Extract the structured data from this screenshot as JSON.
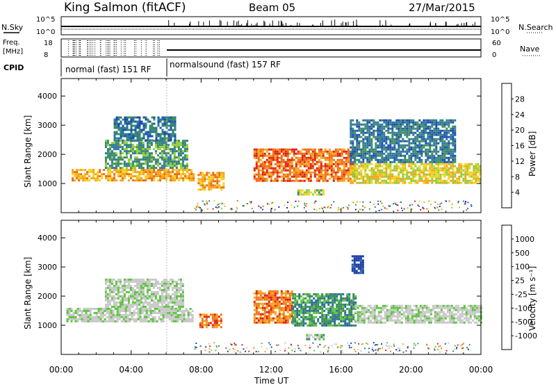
{
  "header": {
    "station": "King Salmon (fitACF)",
    "beam": "Beam 05",
    "date": "27/Mar/2015"
  },
  "summary_panels": {
    "nsky_label": "N.Sky",
    "nsky_ticks": [
      "10^5",
      "10^0"
    ],
    "nsearch_label": "N.Search",
    "nsearch_ticks": [
      "10^5",
      "10^0"
    ],
    "freq_label": "Freq.",
    "freq_unit": "[MHz]",
    "freq_ticks": [
      "18",
      "8"
    ],
    "nave_label": "Nave",
    "nave_ticks": [
      "60",
      "0"
    ],
    "cpid_label": "CPID",
    "cpid_segments": [
      {
        "label": "normal (fast) 151 RF",
        "start_hour": 0,
        "end_hour": 6
      },
      {
        "label": "normalsound (fast) 157 RF",
        "start_hour": 6,
        "end_hour": 24
      }
    ]
  },
  "chart_data": [
    {
      "type": "heatmap",
      "name": "power",
      "ylabel": "Slant Range [km]",
      "ytick_values": [
        1000,
        2000,
        3000,
        4000
      ],
      "ylim": [
        0,
        4600
      ],
      "xlim": [
        0,
        24
      ],
      "colorbar": {
        "label": "Power [dB]",
        "ticks": [
          "28",
          "24",
          "20",
          "16",
          "12",
          "8",
          "4"
        ],
        "colors": [
          "#0b1ee6",
          "#1c4eb4",
          "#2f7a9a",
          "#3f8f5d",
          "#8fcf3a",
          "#f2d21f",
          "#f5a41a",
          "#f06a12",
          "#e02010"
        ]
      },
      "regions": [
        {
          "x0": 0.6,
          "x1": 7.6,
          "y0": 1100,
          "y1": 1500,
          "level": 6
        },
        {
          "x0": 2.5,
          "x1": 7.2,
          "y0": 1500,
          "y1": 2500,
          "level": 3
        },
        {
          "x0": 3.0,
          "x1": 6.5,
          "y0": 2500,
          "y1": 3300,
          "level": 2
        },
        {
          "x0": 7.8,
          "x1": 9.3,
          "y0": 800,
          "y1": 1400,
          "level": 6
        },
        {
          "x0": 11.0,
          "x1": 16.8,
          "y0": 1100,
          "y1": 2200,
          "level": 7
        },
        {
          "x0": 13.5,
          "x1": 15.0,
          "y0": 600,
          "y1": 800,
          "level": 4
        },
        {
          "x0": 16.5,
          "x1": 24.0,
          "y0": 1000,
          "y1": 1700,
          "level": 5
        },
        {
          "x0": 16.5,
          "x1": 22.5,
          "y0": 1700,
          "y1": 3200,
          "level": 2
        }
      ]
    },
    {
      "type": "heatmap",
      "name": "velocity",
      "ylabel": "Slant Range [km]",
      "ytick_values": [
        1000,
        2000,
        3000,
        4000
      ],
      "ylim": [
        0,
        4600
      ],
      "xlim": [
        0,
        24
      ],
      "colorbar": {
        "label": "Velocity [m s⁻¹]",
        "ticks": [
          "1000",
          "500",
          "100",
          "25",
          "-25",
          "-100",
          "-500",
          "-1000"
        ],
        "colors": [
          "#1e3ca8",
          "#2a6aa0",
          "#3c8c5a",
          "#5cc43c",
          "#c8c8c8",
          "#c8c8c8",
          "#f5a41a",
          "#f07814",
          "#e02010"
        ]
      },
      "regions": [
        {
          "x0": 0.3,
          "x1": 7.5,
          "y0": 1100,
          "y1": 1600,
          "level": 4
        },
        {
          "x0": 2.5,
          "x1": 7.0,
          "y0": 1600,
          "y1": 2600,
          "level": 4
        },
        {
          "x0": 7.9,
          "x1": 9.2,
          "y0": 900,
          "y1": 1400,
          "level": 7
        },
        {
          "x0": 11.0,
          "x1": 13.2,
          "y0": 1100,
          "y1": 2200,
          "level": 7
        },
        {
          "x0": 13.2,
          "x1": 16.8,
          "y0": 1000,
          "y1": 2100,
          "level": 2
        },
        {
          "x0": 14.0,
          "x1": 15.0,
          "y0": 500,
          "y1": 700,
          "level": 3
        },
        {
          "x0": 16.6,
          "x1": 17.2,
          "y0": 2800,
          "y1": 3400,
          "level": 0
        },
        {
          "x0": 16.8,
          "x1": 24.0,
          "y0": 1100,
          "y1": 1700,
          "level": 4
        }
      ]
    }
  ],
  "x_axis": {
    "ticks": [
      "00:00",
      "04:00",
      "08:00",
      "12:00",
      "16:00",
      "20:00",
      "00:00"
    ],
    "tick_hours": [
      0,
      4,
      8,
      12,
      16,
      20,
      24
    ],
    "label": "Time UT"
  }
}
